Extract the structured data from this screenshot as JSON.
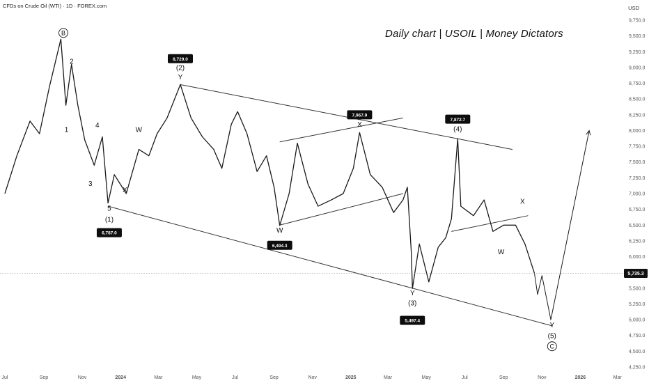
{
  "header": {
    "symbol": "CFDs on Crude Oil (WTI) · 1D · FOREX.com",
    "currency": "USD",
    "brand": "Daily chart | USOIL | Money Dictators"
  },
  "chart_data": {
    "type": "line",
    "title": "Daily chart | USOIL | Money Dictators",
    "ylim": [
      4150,
      9950
    ],
    "y_ticks": [
      "9,750.0",
      "9,500.0",
      "9,250.0",
      "9,000.0",
      "8,750.0",
      "8,500.0",
      "8,250.0",
      "8,000.0",
      "7,750.0",
      "7,500.0",
      "7,250.0",
      "7,000.0",
      "6,750.0",
      "6,500.0",
      "6,250.0",
      "6,000.0",
      "5,750.0",
      "5,500.0",
      "5,250.0",
      "5,000.0",
      "4,750.0",
      "4,500.0",
      "4,250.0"
    ],
    "x_ticks": [
      "Jul",
      "Sep",
      "Nov",
      "2024",
      "Mar",
      "May",
      "Jul",
      "Sep",
      "Nov",
      "2025",
      "Mar",
      "May",
      "Jul",
      "Sep",
      "Nov",
      "2026",
      "Mar"
    ],
    "current_price": "5,735.3",
    "series": [
      {
        "points": [
          [
            "2023-07-01",
            7000
          ],
          [
            "2023-07-20",
            7600
          ],
          [
            "2023-08-10",
            8150
          ],
          [
            "2023-08-25",
            7950
          ],
          [
            "2023-09-10",
            8700
          ],
          [
            "2023-09-28",
            9450
          ],
          [
            "2023-10-06",
            8400
          ],
          [
            "2023-10-15",
            9050
          ],
          [
            "2023-10-25",
            8400
          ],
          [
            "2023-11-05",
            7850
          ],
          [
            "2023-11-20",
            7450
          ],
          [
            "2023-12-03",
            7900
          ],
          [
            "2023-12-12",
            6850
          ],
          [
            "2023-12-22",
            7300
          ],
          [
            "2024-01-10",
            7000
          ],
          [
            "2024-01-30",
            7700
          ],
          [
            "2024-02-15",
            7600
          ],
          [
            "2024-02-28",
            7950
          ],
          [
            "2024-03-15",
            8200
          ],
          [
            "2024-04-05",
            8729
          ],
          [
            "2024-04-22",
            8200
          ],
          [
            "2024-05-10",
            7900
          ],
          [
            "2024-05-28",
            7700
          ],
          [
            "2024-06-10",
            7400
          ],
          [
            "2024-06-25",
            8100
          ],
          [
            "2024-07-05",
            8300
          ],
          [
            "2024-07-20",
            7950
          ],
          [
            "2024-08-05",
            7350
          ],
          [
            "2024-08-20",
            7600
          ],
          [
            "2024-09-01",
            7100
          ],
          [
            "2024-09-10",
            6494
          ],
          [
            "2024-09-25",
            7000
          ],
          [
            "2024-10-08",
            7800
          ],
          [
            "2024-10-25",
            7150
          ],
          [
            "2024-11-10",
            6800
          ],
          [
            "2024-12-01",
            6900
          ],
          [
            "2024-12-20",
            7000
          ],
          [
            "2025-01-05",
            7400
          ],
          [
            "2025-01-15",
            7968
          ],
          [
            "2025-02-01",
            7300
          ],
          [
            "2025-02-20",
            7100
          ],
          [
            "2025-03-10",
            6700
          ],
          [
            "2025-03-25",
            6900
          ],
          [
            "2025-04-01",
            7100
          ],
          [
            "2025-04-07",
            6100
          ],
          [
            "2025-04-09",
            5497
          ],
          [
            "2025-04-20",
            6200
          ],
          [
            "2025-05-05",
            5600
          ],
          [
            "2025-05-20",
            6150
          ],
          [
            "2025-06-01",
            6300
          ],
          [
            "2025-06-10",
            6600
          ],
          [
            "2025-06-20",
            7873
          ],
          [
            "2025-06-25",
            6800
          ],
          [
            "2025-07-15",
            6650
          ],
          [
            "2025-08-01",
            6900
          ],
          [
            "2025-08-15",
            6400
          ],
          [
            "2025-09-01",
            6500
          ],
          [
            "2025-09-20",
            6500
          ],
          [
            "2025-10-05",
            6200
          ],
          [
            "2025-10-20",
            5735
          ]
        ]
      },
      {
        "points": [
          [
            "2025-10-20",
            5735
          ],
          [
            "2025-10-25",
            5400
          ],
          [
            "2025-11-01",
            5700
          ],
          [
            "2025-11-15",
            5000
          ],
          [
            "2026-01-15",
            8000
          ]
        ]
      }
    ],
    "trendlines": [
      {
        "points": [
          [
            "2024-04-05",
            8729
          ],
          [
            "2025-09-15",
            7700
          ]
        ]
      },
      {
        "points": [
          [
            "2023-12-12",
            6800
          ],
          [
            "2025-11-18",
            4900
          ]
        ]
      },
      {
        "points": [
          [
            "2024-09-10",
            7820
          ],
          [
            "2025-03-25",
            8200
          ]
        ]
      },
      {
        "points": [
          [
            "2024-09-10",
            6500
          ],
          [
            "2025-03-25",
            7000
          ]
        ]
      },
      {
        "points": [
          [
            "2025-06-10",
            6400
          ],
          [
            "2025-10-10",
            6650
          ]
        ]
      }
    ],
    "wave_labels": [
      {
        "text": "B",
        "x": "2023-10-02",
        "y": 9510,
        "circled": true
      },
      {
        "text": "2",
        "x": "2023-10-15",
        "y": 9060
      },
      {
        "text": "1",
        "x": "2023-10-07",
        "y": 7980
      },
      {
        "text": "4",
        "x": "2023-11-25",
        "y": 8050
      },
      {
        "text": "3",
        "x": "2023-11-14",
        "y": 7120
      },
      {
        "text": "5",
        "x": "2023-12-14",
        "y": 6730
      },
      {
        "text": "(1)",
        "x": "2023-12-14",
        "y": 6550
      },
      {
        "text": "W",
        "x": "2024-01-30",
        "y": 7980
      },
      {
        "text": "X",
        "x": "2024-01-08",
        "y": 7020
      },
      {
        "text": "(2)",
        "x": "2024-04-05",
        "y": 8960
      },
      {
        "text": "Y",
        "x": "2024-04-05",
        "y": 8810
      },
      {
        "text": "W",
        "x": "2024-09-10",
        "y": 6380
      },
      {
        "text": "X",
        "x": "2025-01-15",
        "y": 8060
      },
      {
        "text": "(4)",
        "x": "2025-06-20",
        "y": 7990
      },
      {
        "text": "Y",
        "x": "2025-04-09",
        "y": 5390
      },
      {
        "text": "(3)",
        "x": "2025-04-09",
        "y": 5230
      },
      {
        "text": "X",
        "x": "2025-10-01",
        "y": 6840
      },
      {
        "text": "W",
        "x": "2025-08-28",
        "y": 6040
      },
      {
        "text": "Y",
        "x": "2025-11-17",
        "y": 4880
      },
      {
        "text": "(5)",
        "x": "2025-11-17",
        "y": 4710
      },
      {
        "text": "C",
        "x": "2025-11-17",
        "y": 4540,
        "circled": true
      }
    ],
    "price_flags": [
      {
        "text": "8,729.0",
        "x": "2024-04-05",
        "y": 9140
      },
      {
        "text": "6,787.0",
        "x": "2023-12-14",
        "y": 6380
      },
      {
        "text": "7,967.9",
        "x": "2025-01-15",
        "y": 8250
      },
      {
        "text": "6,494.3",
        "x": "2024-09-10",
        "y": 6180
      },
      {
        "text": "7,872.7",
        "x": "2025-06-20",
        "y": 8180
      },
      {
        "text": "5,497.4",
        "x": "2025-04-09",
        "y": 4990
      }
    ]
  },
  "colors": {
    "background": "#ffffff",
    "price": "#1a1a1a",
    "trendline": "#333333",
    "flag_bg": "#0d0d0d",
    "flag_text": "#ffffff",
    "axis_text": "#555555"
  }
}
